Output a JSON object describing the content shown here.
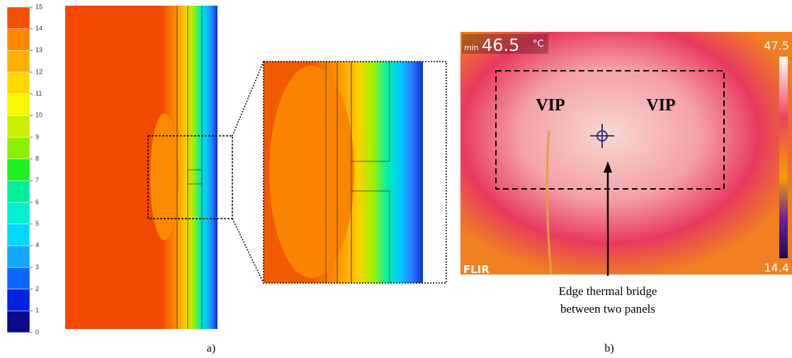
{
  "colorbar": {
    "ticks": [
      0,
      1,
      2,
      3,
      4,
      5,
      6,
      7,
      8,
      9,
      10,
      11,
      12,
      13,
      14,
      15
    ]
  },
  "panel_a": {
    "label": "a)"
  },
  "panel_b": {
    "label": "b)",
    "readout": {
      "min_label": "min",
      "min_value": "46.5",
      "unit": "°C",
      "scale_max": "47.5",
      "scale_min": "14.4",
      "brand": "FLIR"
    },
    "regions": [
      "VIP",
      "VIP"
    ],
    "annotation": [
      "Edge thermal bridge",
      "between two panels"
    ]
  }
}
